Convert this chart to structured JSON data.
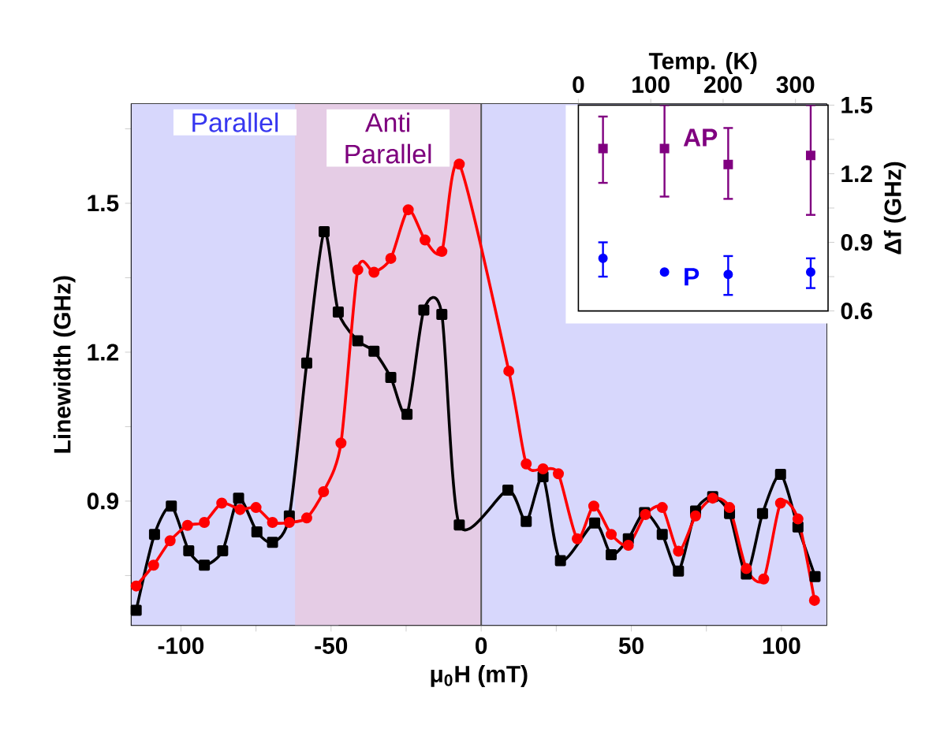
{
  "chart_data": [
    {
      "type": "line",
      "xlabel": "μ$_{0}$H (mT)",
      "ylabel": "Linewidth (GHz)",
      "xlim": [
        -116.5,
        115
      ],
      "ylim": [
        0.65,
        1.7
      ],
      "xticks": [
        -100,
        {
          "value": -75,
          "label": null
        },
        -50,
        {
          "value": -25,
          "label": null
        },
        0,
        {
          "value": 25,
          "label": null
        },
        50,
        {
          "value": 75,
          "label": null
        },
        100
      ],
      "yticks": [
        {
          "value": 0.75,
          "label": null
        },
        0.9,
        {
          "value": 1.05,
          "label": null
        },
        1.2,
        {
          "value": 1.35,
          "label": null
        },
        1.5,
        {
          "value": 1.65,
          "label": null
        }
      ],
      "bands": [
        {
          "axis": "x",
          "from": -116.5,
          "to": -47.5,
          "label": "Parallel",
          "color": "#d7d7fc"
        },
        {
          "axis": "x",
          "from": -62,
          "to": 0,
          "label": "Anti Parallel",
          "color": "#e5cce5"
        },
        {
          "axis": "x",
          "from": 0,
          "to": 115,
          "color": "#d7d7fc"
        }
      ],
      "ref_lines": [
        {
          "axis": "x",
          "value": 0,
          "color": "#555555"
        }
      ],
      "series": [
        {
          "color": "#000000",
          "marker": "square",
          "x": [
            -114.9,
            -108.8,
            -103.2,
            -97.4,
            -92.2,
            -86.1,
            -80.8,
            -74.7,
            -69.5,
            -63.9,
            -58.1,
            -52.3,
            -47.6,
            -41.1,
            -35.7,
            -30.1,
            -24.7,
            -19.1,
            -13.1,
            -7.3,
            8.9,
            15.0,
            20.6,
            26.4,
            37.8,
            43.3,
            49.0,
            54.4,
            60.3,
            65.7,
            71.4,
            77.1,
            82.7,
            88.3,
            93.7,
            99.7,
            105.5,
            111.2
          ],
          "values": [
            0.68,
            0.833,
            0.89,
            0.8,
            0.771,
            0.8,
            0.906,
            0.838,
            0.817,
            0.87,
            1.178,
            1.443,
            1.281,
            1.223,
            1.202,
            1.149,
            1.075,
            1.285,
            1.276,
            0.852,
            0.922,
            0.859,
            0.949,
            0.78,
            0.856,
            0.792,
            0.824,
            0.877,
            0.833,
            0.759,
            0.88,
            0.909,
            0.875,
            0.753,
            0.875,
            0.954,
            0.848,
            0.748
          ]
        },
        {
          "color": "#ff0000",
          "marker": "circle",
          "x": [
            -114.9,
            -109.1,
            -103.6,
            -97.8,
            -92.2,
            -86.4,
            -80.3,
            -75.0,
            -69.5,
            -63.9,
            -58.1,
            -52.5,
            -46.7,
            -41.1,
            -35.7,
            -30.1,
            -24.3,
            -18.7,
            -13.1,
            -7.3,
            9.2,
            15.0,
            20.6,
            25.7,
            32.0,
            37.5,
            43.3,
            49.0,
            54.7,
            60.3,
            65.7,
            71.4,
            77.1,
            82.7,
            88.3,
            94.1,
            99.7,
            105.5,
            111.0
          ],
          "values": [
            0.729,
            0.771,
            0.82,
            0.851,
            0.857,
            0.896,
            0.883,
            0.887,
            0.857,
            0.857,
            0.866,
            0.919,
            1.017,
            1.366,
            1.361,
            1.389,
            1.487,
            1.426,
            1.403,
            1.579,
            1.162,
            0.975,
            0.965,
            0.955,
            0.824,
            0.89,
            0.833,
            0.811,
            0.873,
            0.887,
            0.799,
            0.87,
            0.906,
            0.887,
            0.764,
            0.743,
            0.896,
            0.864,
            0.7
          ]
        }
      ]
    },
    {
      "type": "scatter",
      "xlabel": "Temp. (K)",
      "ylabel": "Δf (GHz)",
      "xlim": [
        0,
        345
      ],
      "xticks": [
        0,
        100,
        200,
        300
      ],
      "ylim": [
        0.6,
        1.5
      ],
      "yticks": [
        0.6,
        {
          "value": 0.75,
          "label": null
        },
        0.9,
        {
          "value": 1.05,
          "label": null
        },
        1.2,
        {
          "value": 1.35,
          "label": null
        },
        1.5
      ],
      "series": [
        {
          "name": "AP",
          "color": "#800080",
          "marker": "square",
          "x": [
            34,
            119,
            207,
            321
          ],
          "values": [
            1.31,
            1.31,
            1.24,
            1.28
          ],
          "errors": [
            [
              1.16,
              1.45
            ],
            [
              1.1,
              1.5
            ],
            [
              1.09,
              1.4
            ],
            [
              1.02,
              1.5
            ]
          ]
        },
        {
          "name": "P",
          "color": "#0000ff",
          "marker": "circle",
          "x": [
            34,
            119,
            207,
            321
          ],
          "values": [
            0.83,
            0.77,
            0.76,
            0.77
          ],
          "errors": [
            [
              0.75,
              0.9
            ],
            null,
            [
              0.67,
              0.84
            ],
            [
              0.7,
              0.83
            ]
          ]
        }
      ]
    }
  ]
}
